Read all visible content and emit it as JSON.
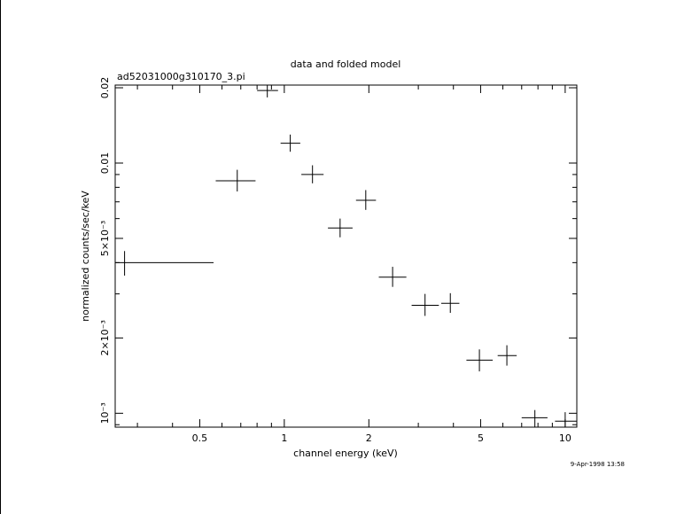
{
  "chart_data": {
    "type": "scatter",
    "title": "data and folded model",
    "subtitle": "ad52031000g310170_3.pi",
    "xlabel": "channel energy (keV)",
    "ylabel": "normalized counts/sec/keV",
    "xscale": "log",
    "yscale": "log",
    "xlim": [
      0.25,
      11
    ],
    "ylim": [
      0.00088,
      0.0205
    ],
    "x_ticks": [
      {
        "value": 0.5,
        "label": "0.5"
      },
      {
        "value": 1,
        "label": "1"
      },
      {
        "value": 2,
        "label": "2"
      },
      {
        "value": 5,
        "label": "5"
      },
      {
        "value": 10,
        "label": "10"
      }
    ],
    "y_ticks": [
      {
        "value": 0.001,
        "label": "10⁻³"
      },
      {
        "value": 0.002,
        "label": "2×10⁻³"
      },
      {
        "value": 0.005,
        "label": "5×10⁻³"
      },
      {
        "value": 0.01,
        "label": "0.01"
      },
      {
        "value": 0.02,
        "label": "0.02"
      }
    ],
    "series": [
      {
        "points": [
          {
            "x": 0.27,
            "y": 0.004,
            "xlo": 0.25,
            "xhi": 0.56,
            "ylo": 0.00355,
            "yhi": 0.00445
          },
          {
            "x": 0.68,
            "y": 0.0085,
            "xlo": 0.57,
            "xhi": 0.79,
            "ylo": 0.0077,
            "yhi": 0.0094
          },
          {
            "x": 0.87,
            "y": 0.0195,
            "xlo": 0.8,
            "xhi": 0.95,
            "ylo": 0.0183,
            "yhi": 0.0207
          },
          {
            "x": 1.05,
            "y": 0.012,
            "xlo": 0.97,
            "xhi": 1.14,
            "ylo": 0.0111,
            "yhi": 0.013
          },
          {
            "x": 1.26,
            "y": 0.009,
            "xlo": 1.15,
            "xhi": 1.38,
            "ylo": 0.0083,
            "yhi": 0.0098
          },
          {
            "x": 1.58,
            "y": 0.0055,
            "xlo": 1.43,
            "xhi": 1.75,
            "ylo": 0.00505,
            "yhi": 0.006
          },
          {
            "x": 1.95,
            "y": 0.0071,
            "xlo": 1.8,
            "xhi": 2.12,
            "ylo": 0.0065,
            "yhi": 0.0078
          },
          {
            "x": 2.43,
            "y": 0.0035,
            "xlo": 2.17,
            "xhi": 2.72,
            "ylo": 0.0032,
            "yhi": 0.00385
          },
          {
            "x": 3.17,
            "y": 0.0027,
            "xlo": 2.84,
            "xhi": 3.55,
            "ylo": 0.00245,
            "yhi": 0.003
          },
          {
            "x": 3.9,
            "y": 0.00275,
            "xlo": 3.62,
            "xhi": 4.2,
            "ylo": 0.00252,
            "yhi": 0.00302
          },
          {
            "x": 4.95,
            "y": 0.00163,
            "xlo": 4.45,
            "xhi": 5.52,
            "ylo": 0.00147,
            "yhi": 0.0018
          },
          {
            "x": 6.2,
            "y": 0.0017,
            "xlo": 5.75,
            "xhi": 6.72,
            "ylo": 0.00155,
            "yhi": 0.00187
          },
          {
            "x": 7.8,
            "y": 0.00096,
            "xlo": 7.0,
            "xhi": 8.65,
            "ylo": 0.00088,
            "yhi": 0.00103
          },
          {
            "x": 10.0,
            "y": 0.00093,
            "xlo": 9.2,
            "xhi": 11.0,
            "ylo": 0.00088,
            "yhi": 0.00101
          }
        ]
      }
    ],
    "grid": false,
    "timestamp": "9-Apr-1998 13:58"
  }
}
